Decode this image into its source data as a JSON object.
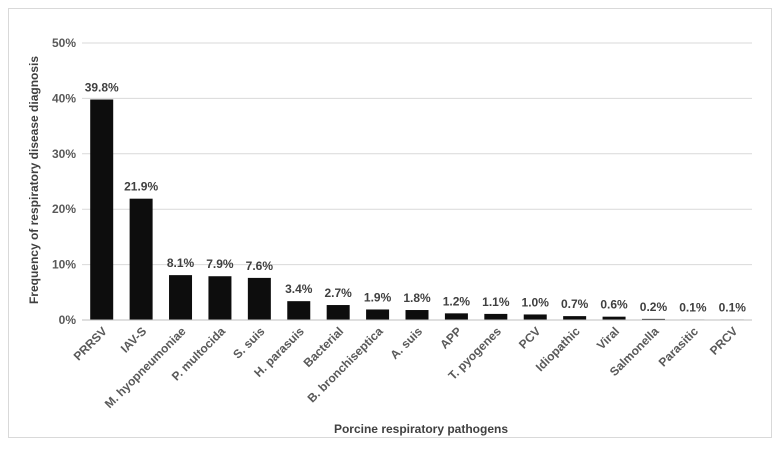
{
  "chart_data": {
    "type": "bar",
    "title": "",
    "xlabel": "Porcine respiratory pathogens",
    "ylabel": "Frequency of respiratory disease diagnosis",
    "ylim": [
      0,
      50
    ],
    "yticks": [
      "0%",
      "10%",
      "20%",
      "30%",
      "40%",
      "50%"
    ],
    "ytick_values": [
      0,
      10,
      20,
      30,
      40,
      50
    ],
    "categories": [
      "PRRSV",
      "IAV-S",
      "M. hyopneumoniae",
      "P. multocida",
      "S. suis",
      "H. parasuis",
      "Bacterial",
      "B. bronchiseptica",
      "A. suis",
      "APP",
      "T. pyogenes",
      "PCV",
      "Idiopathic",
      "Viral",
      "Salmonella",
      "Parasitic",
      "PRCV"
    ],
    "values": [
      39.8,
      21.9,
      8.1,
      7.9,
      7.6,
      3.4,
      2.7,
      1.9,
      1.8,
      1.2,
      1.1,
      1.0,
      0.7,
      0.6,
      0.2,
      0.1,
      0.1
    ],
    "data_labels": [
      "39.8%",
      "21.9%",
      "8.1%",
      "7.9%",
      "7.6%",
      "3.4%",
      "2.7%",
      "1.9%",
      "1.8%",
      "1.2%",
      "1.1%",
      "1.0%",
      "0.7%",
      "0.6%",
      "0.2%",
      "0.1%",
      "0.1%"
    ],
    "grid": true,
    "legend": "none",
    "colors": {
      "bar": "#0d0d0d",
      "grid": "#d9d9d9",
      "text": "#595959"
    }
  }
}
